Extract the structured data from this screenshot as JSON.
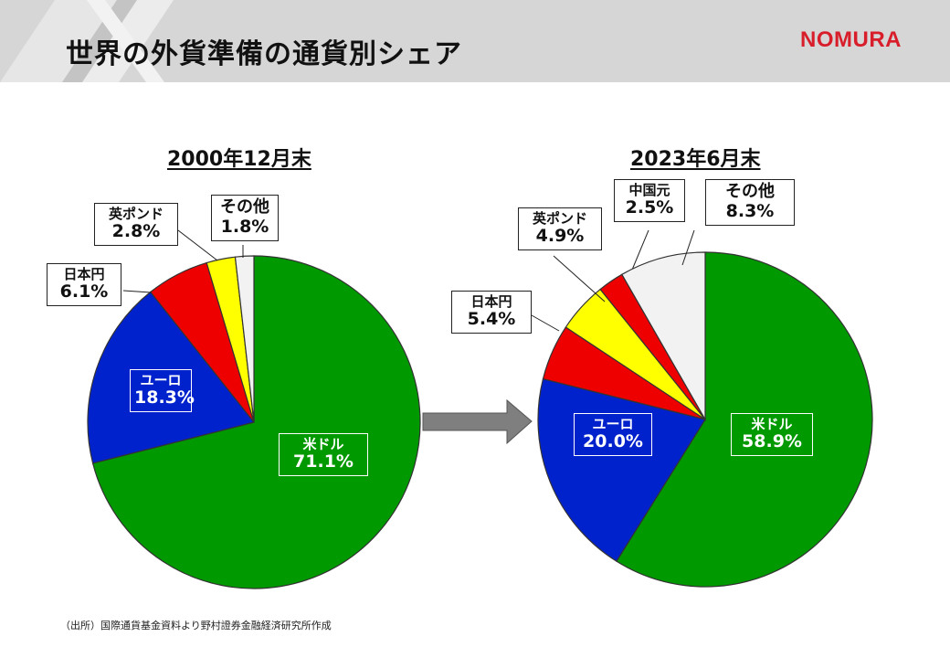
{
  "page": {
    "title": "世界の外貨準備の通貨別シェア",
    "logo": "NOMURA",
    "source": "（出所）国際通貨基金資料より野村證券金融経済研究所作成"
  },
  "chart_data": [
    {
      "type": "pie",
      "title": "2000年12月末",
      "slices": [
        {
          "name": "米ドル",
          "value": 71.1,
          "value_label": "71.1%",
          "color": "#009900"
        },
        {
          "name": "ユーロ",
          "value": 18.3,
          "value_label": "18.3%",
          "color": "#0022cc"
        },
        {
          "name": "日本円",
          "value": 6.1,
          "value_label": "6.1%",
          "color": "#ee0000"
        },
        {
          "name": "英ポンド",
          "value": 2.8,
          "value_label": "2.8%",
          "color": "#ffff00"
        },
        {
          "name": "その他",
          "value": 1.8,
          "value_label": "1.8%",
          "color": "#f2f2f2"
        }
      ]
    },
    {
      "type": "pie",
      "title": "2023年6月末",
      "slices": [
        {
          "name": "米ドル",
          "value": 58.9,
          "value_label": "58.9%",
          "color": "#009900"
        },
        {
          "name": "ユーロ",
          "value": 20.0,
          "value_label": "20.0%",
          "color": "#0022cc"
        },
        {
          "name": "日本円",
          "value": 5.4,
          "value_label": "5.4%",
          "color": "#ee0000"
        },
        {
          "name": "英ポンド",
          "value": 4.9,
          "value_label": "4.9%",
          "color": "#ffff00"
        },
        {
          "name": "中国元",
          "value": 2.5,
          "value_label": "2.5%",
          "color": "#ee0000"
        },
        {
          "name": "その他",
          "value": 8.3,
          "value_label": "8.3%",
          "color": "#f2f2f2"
        }
      ]
    }
  ]
}
